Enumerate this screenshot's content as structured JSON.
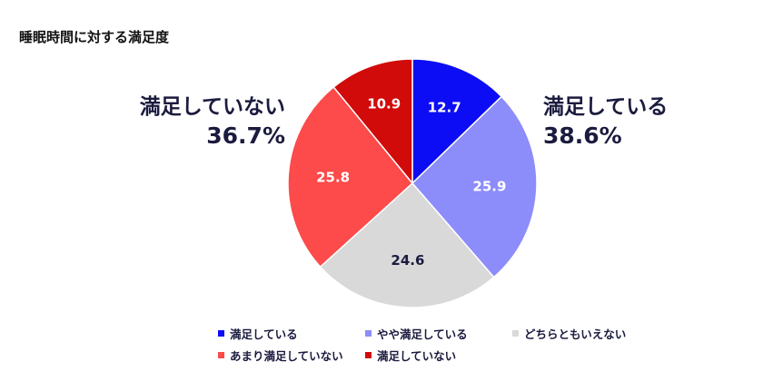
{
  "title": "睡眠時間に対する満足度",
  "callouts": {
    "left": {
      "label": "満足していない",
      "pct": "36.7%"
    },
    "right": {
      "label": "満足している",
      "pct": "38.6%"
    }
  },
  "slices": [
    {
      "label": "満足している",
      "value": "12.7",
      "color": "#0d0df5",
      "text_color": "#ffffff"
    },
    {
      "label": "やや満足している",
      "value": "25.9",
      "color": "#8c8cfa",
      "text_color": "#ffffff"
    },
    {
      "label": "どちらともいえない",
      "value": "24.6",
      "color": "#d9d9d9",
      "text_color": "#1b1b3f"
    },
    {
      "label": "あまり満足していない",
      "value": "25.8",
      "color": "#fd4a4a",
      "text_color": "#ffffff"
    },
    {
      "label": "満足していない",
      "value": "10.9",
      "color": "#d10a0a",
      "text_color": "#ffffff"
    }
  ],
  "legend": [
    {
      "label": "満足している",
      "color": "#0d0df5"
    },
    {
      "label": "やや満足している",
      "color": "#8c8cfa"
    },
    {
      "label": "どちらともいえない",
      "color": "#d9d9d9"
    },
    {
      "label": "あまり満足していない",
      "color": "#fd4a4a"
    },
    {
      "label": "満足していない",
      "color": "#d10a0a"
    }
  ],
  "chart_data": {
    "type": "pie",
    "title": "睡眠時間に対する満足度",
    "categories": [
      "満足している",
      "やや満足している",
      "どちらともいえない",
      "あまり満足していない",
      "満足していない"
    ],
    "values": [
      12.7,
      25.9,
      24.6,
      25.8,
      10.9
    ],
    "colors": [
      "#0d0df5",
      "#8c8cfa",
      "#d9d9d9",
      "#fd4a4a",
      "#d10a0a"
    ],
    "start_angle": "12 o'clock",
    "direction": "clockwise",
    "annotations": [
      {
        "text": "満足している 38.6%",
        "position": "right",
        "covers": [
          "満足している",
          "やや満足している"
        ]
      },
      {
        "text": "満足していない 36.7%",
        "position": "left",
        "covers": [
          "あまり満足していない",
          "満足していない"
        ]
      }
    ],
    "legend_position": "bottom",
    "unit": "%"
  }
}
